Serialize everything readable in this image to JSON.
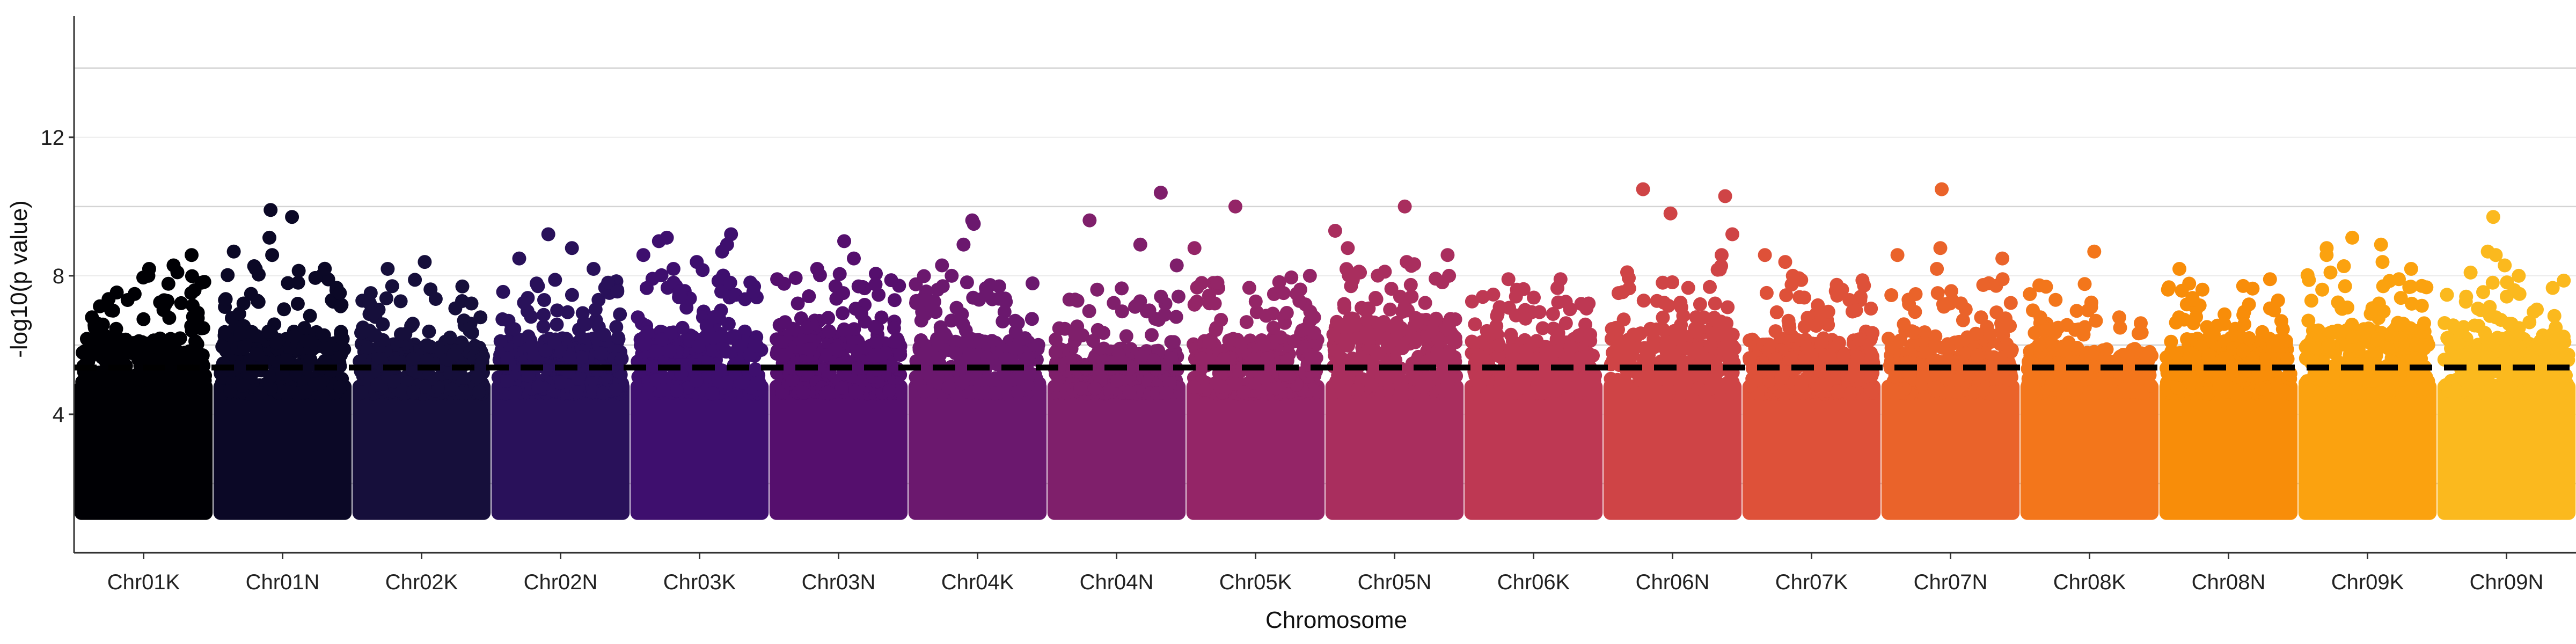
{
  "chart_data": {
    "type": "scatter",
    "subtype": "manhattan",
    "title": "",
    "xlabel": "Chromosome",
    "ylabel": "-log10(p value)",
    "ylim": [
      0,
      15.5
    ],
    "y_ticks": [
      4,
      8,
      12
    ],
    "grid": "horizontal",
    "reference_lines": [
      {
        "y": 5.35,
        "style": "dashed",
        "color": "#000000"
      }
    ],
    "categories": [
      "Chr01K",
      "Chr01N",
      "Chr02K",
      "Chr02N",
      "Chr03K",
      "Chr03N",
      "Chr04K",
      "Chr04N",
      "Chr05K",
      "Chr05N",
      "Chr06K",
      "Chr06N",
      "Chr07K",
      "Chr07N",
      "Chr08K",
      "Chr08N",
      "Chr09K",
      "Chr09N"
    ],
    "colors": [
      "#000004",
      "#0b0826",
      "#160f3b",
      "#29115a",
      "#3e0f6e",
      "#550f6d",
      "#6b186e",
      "#7f1f6b",
      "#942567",
      "#a92e5e",
      "#be3853",
      "#cf4446",
      "#de5139",
      "#ea632a",
      "#f3761b",
      "#f88d09",
      "#fba20f",
      "#fbb91e"
    ],
    "dense_band_top": [
      5.6,
      5.9,
      5.5,
      5.6,
      5.8,
      5.7,
      5.6,
      5.3,
      5.6,
      6.2,
      5.6,
      5.9,
      5.6,
      5.5,
      5.4,
      5.6,
      5.9,
      5.7
    ],
    "top_hits": [
      [
        8.6,
        8.3,
        8.2,
        8.1,
        8.0,
        7.8,
        7.5,
        7.3,
        7.0,
        6.8
      ],
      [
        9.9,
        9.7,
        9.1,
        8.7,
        8.6,
        8.2,
        7.8,
        7.5,
        7.2,
        6.9
      ],
      [
        8.4,
        8.2,
        7.7,
        7.5,
        7.2,
        6.9,
        6.6,
        6.3
      ],
      [
        9.2,
        8.8,
        8.5,
        8.2,
        7.7,
        7.3,
        7.0,
        6.6
      ],
      [
        9.2,
        9.1,
        9.0,
        8.9,
        8.7,
        8.6,
        8.4,
        8.2,
        7.8,
        7.4,
        7.0
      ],
      [
        9.0,
        8.5,
        8.2,
        7.9,
        7.5,
        7.2,
        6.9,
        6.5
      ],
      [
        9.6,
        9.5,
        8.9,
        8.3,
        8.0,
        7.7,
        7.3,
        7.0,
        6.7
      ],
      [
        10.4,
        9.6,
        8.9,
        8.3,
        7.6,
        7.4,
        7.0
      ],
      [
        10.0,
        8.8,
        8.0,
        7.8,
        7.5,
        7.2,
        6.8,
        6.5
      ],
      [
        10.0,
        9.3,
        8.8,
        8.6,
        8.4,
        8.0,
        7.7,
        7.4,
        7.0
      ],
      [
        7.9,
        7.6,
        7.4,
        7.2,
        6.9,
        6.6,
        6.3
      ],
      [
        10.5,
        10.3,
        9.8,
        9.2,
        8.6,
        8.1,
        7.8,
        7.5,
        7.2
      ],
      [
        8.6,
        8.4,
        8.0,
        7.6,
        7.3,
        7.0,
        6.7
      ],
      [
        10.5,
        8.8,
        8.6,
        8.5,
        8.2,
        7.9,
        7.5,
        7.2,
        6.8
      ],
      [
        8.7,
        7.0,
        6.8,
        6.5,
        6.3,
        6.0
      ],
      [
        8.2,
        7.9,
        7.6,
        7.3,
        7.0,
        6.6,
        6.2
      ],
      [
        9.1,
        8.9,
        8.8,
        8.6,
        8.4,
        8.2,
        7.9,
        7.6,
        7.2
      ],
      [
        9.7,
        8.7,
        8.6,
        8.3,
        8.0,
        7.8,
        7.4,
        7.1
      ]
    ]
  }
}
